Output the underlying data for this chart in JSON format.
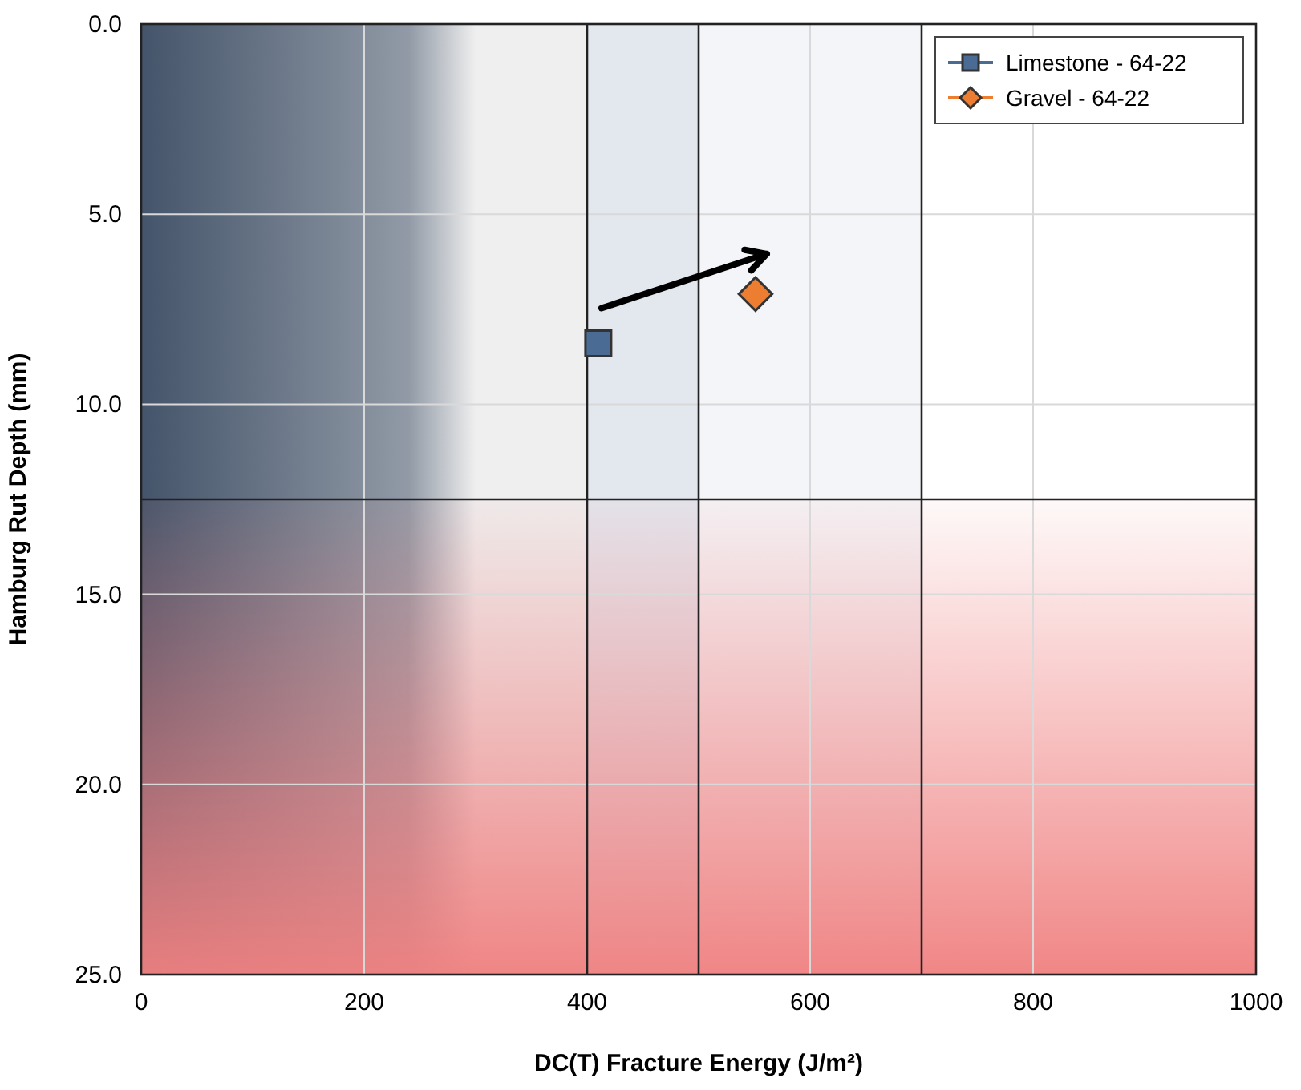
{
  "chart_data": {
    "type": "scatter",
    "xlabel": "DC(T) Fracture Energy (J/m²)",
    "ylabel": "Hamburg Rut Depth (mm)",
    "xlim": [
      0,
      1000
    ],
    "xticks": [
      0,
      200,
      400,
      600,
      800,
      1000
    ],
    "ylim": [
      25,
      0
    ],
    "yticks": [
      {
        "value": 0,
        "label": "0.0"
      },
      {
        "value": 5,
        "label": "5.0"
      },
      {
        "value": 10,
        "label": "10.0"
      },
      {
        "value": 15,
        "label": "15.0"
      },
      {
        "value": 20,
        "label": "20.0"
      },
      {
        "value": 25,
        "label": "25.0"
      }
    ],
    "grid": true,
    "legend": "top right",
    "bands": [
      {
        "axis": "x",
        "from": 0,
        "to": 400,
        "color": "#efefef"
      },
      {
        "axis": "x",
        "from": 400,
        "to": 500,
        "color": "#e3e7ee"
      },
      {
        "axis": "x",
        "from": 500,
        "to": 700,
        "color": "#f4f5f8"
      },
      {
        "axis": "x",
        "from": 0,
        "to": 300,
        "color": "#44546a"
      },
      {
        "axis": "y",
        "from": 12.5,
        "to": 25,
        "color": "#f08080"
      }
    ],
    "ref_lines": [
      {
        "axis": "x",
        "value": 400
      },
      {
        "axis": "x",
        "value": 500
      },
      {
        "axis": "x",
        "value": 700
      },
      {
        "axis": "y",
        "value": 12.5
      }
    ],
    "series": [
      {
        "name": "Limestone - 64-22",
        "color": "#4a6b94",
        "marker": "square",
        "x": [
          410
        ],
        "values": [
          8.4
        ]
      },
      {
        "name": "Gravel - 64-22",
        "color": "#ed7d31",
        "marker": "diamond",
        "x": [
          551
        ],
        "values": [
          7.1
        ]
      }
    ]
  }
}
